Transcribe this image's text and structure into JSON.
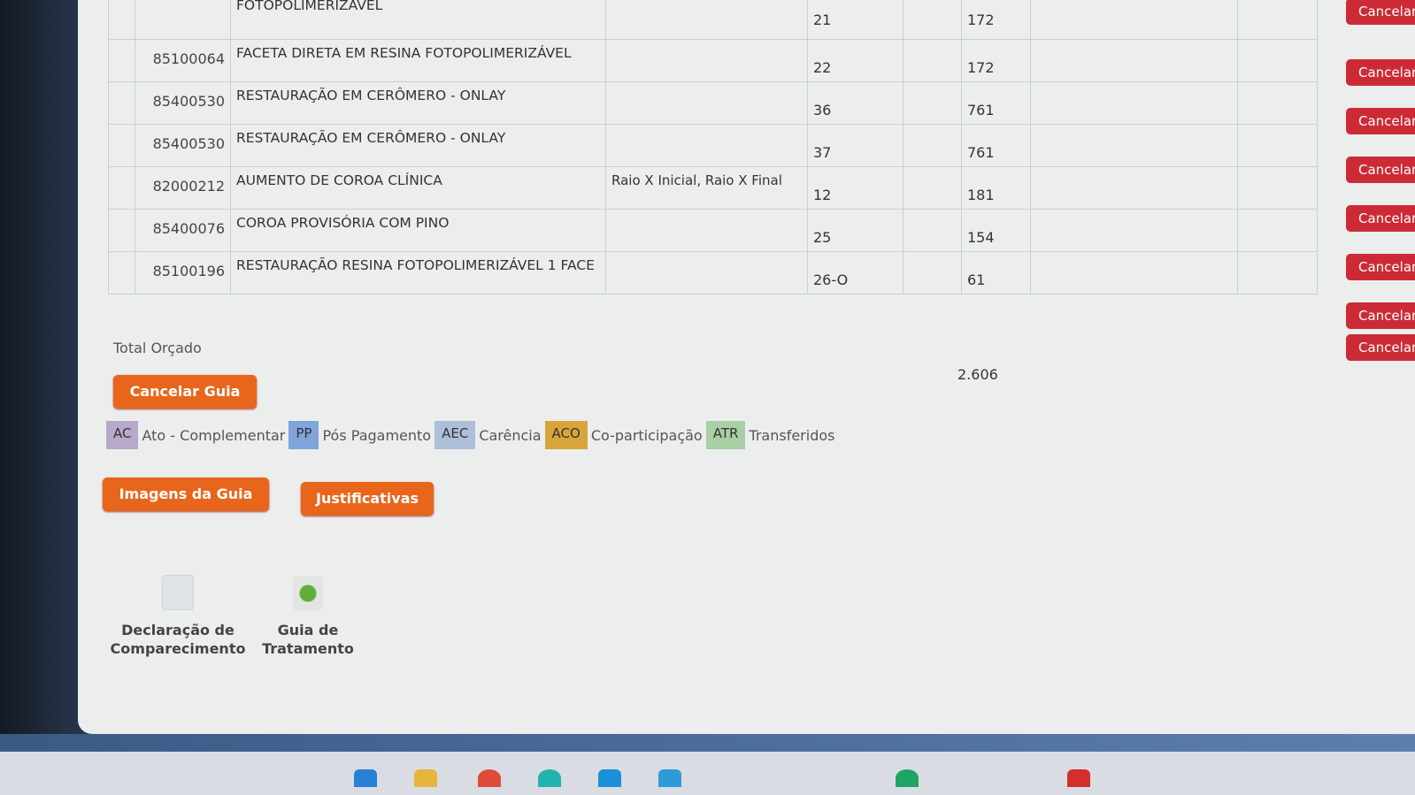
{
  "table": {
    "rows": [
      {
        "code": "",
        "desc": "FOTOPOLIMERIZÁVEL",
        "obs": "",
        "tooth": "21",
        "value": "172",
        "cancel": "Cancelar"
      },
      {
        "code": "85100064",
        "desc": "FACETA DIRETA EM RESINA FOTOPOLIMERIZÁVEL",
        "obs": "",
        "tooth": "22",
        "value": "172",
        "cancel": "Cancelar"
      },
      {
        "code": "85400530",
        "desc": "RESTAURAÇÃO EM CERÔMERO - ONLAY",
        "obs": "",
        "tooth": "36",
        "value": "761",
        "cancel": "Cancelar"
      },
      {
        "code": "85400530",
        "desc": "RESTAURAÇÃO EM CERÔMERO - ONLAY",
        "obs": "",
        "tooth": "37",
        "value": "761",
        "cancel": "Cancelar"
      },
      {
        "code": "82000212",
        "desc": "AUMENTO DE COROA CLÍNICA",
        "obs": "Raio X Inicial, Raio X Final",
        "tooth": "12",
        "value": "181",
        "cancel": "Cancelar"
      },
      {
        "code": "85400076",
        "desc": "COROA PROVISÓRIA COM PINO",
        "obs": "",
        "tooth": "25",
        "value": "154",
        "cancel": "Cancelar"
      },
      {
        "code": "85100196",
        "desc": "RESTAURAÇÃO RESINA FOTOPOLIMERIZÁVEL 1 FACE",
        "obs": "",
        "tooth": "26-O",
        "value": "61",
        "cancel": "Cancelar"
      }
    ],
    "extra_cancel": "Cancelar",
    "total_label": "Total Orçado",
    "total_value": "2.606"
  },
  "buttons": {
    "cancel_guide": "Cancelar Guia",
    "images": "Imagens da Guia",
    "justifications": "Justificativas"
  },
  "legend": [
    {
      "code": "AC",
      "label": "Ato - Complementar",
      "color": "#b7a9c9"
    },
    {
      "code": "PP",
      "label": "Pós Pagamento",
      "color": "#7fa5dc"
    },
    {
      "code": "AEC",
      "label": "Carência",
      "color": "#aebfd9"
    },
    {
      "code": "ACO",
      "label": "Co-participação",
      "color": "#d8a53a"
    },
    {
      "code": "ATR",
      "label": "Transferidos",
      "color": "#a9cfa4"
    }
  ],
  "documents": [
    {
      "label": "Declaração de Comparecimento"
    },
    {
      "label": "Guia de Tratamento"
    }
  ]
}
